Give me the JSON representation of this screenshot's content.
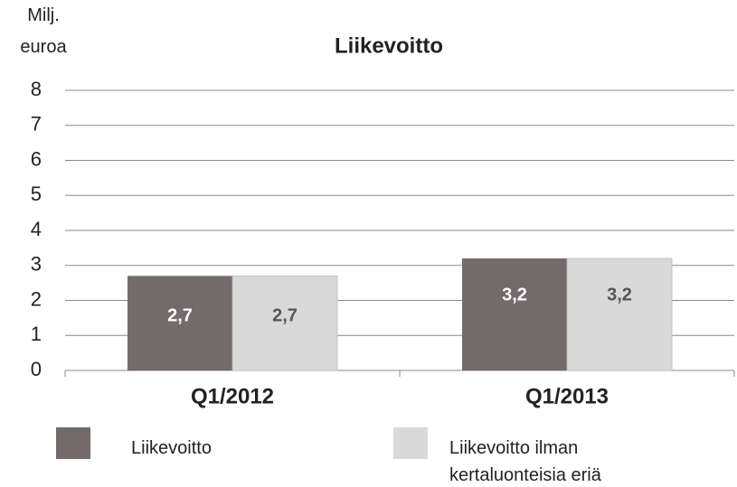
{
  "chart_data": {
    "type": "bar",
    "title": "Liikevoitto",
    "y_label": "Milj. euroa",
    "categories": [
      "Q1/2012",
      "Q1/2013"
    ],
    "series": [
      {
        "name": "Liikevoitto",
        "color": "#736a6b",
        "values": [
          2.7,
          3.2
        ],
        "value_labels": [
          "2,7",
          "3,2"
        ]
      },
      {
        "name": "Liikevoitto ilman kertaluonteisia eriä",
        "color": "#d9d9d9",
        "values": [
          2.7,
          3.2
        ],
        "value_labels": [
          "2,7",
          "3,2"
        ]
      }
    ],
    "ylim": [
      0,
      8
    ],
    "yticks": [
      0,
      1,
      2,
      3,
      4,
      5,
      6,
      7,
      8
    ],
    "grid": true
  }
}
